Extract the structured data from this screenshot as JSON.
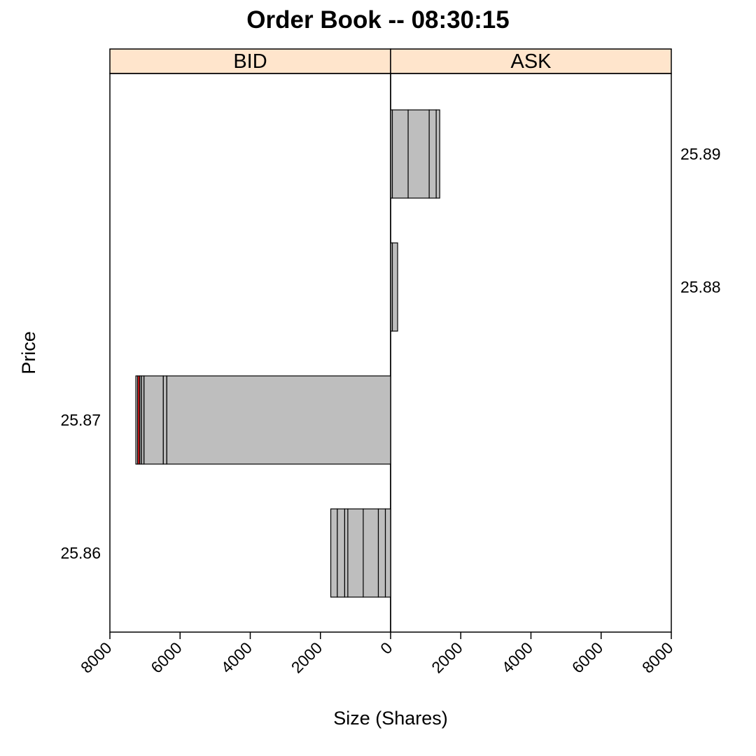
{
  "chart_data": {
    "type": "bar",
    "title": "Order Book -- 08:30:15",
    "xlabel": "Size (Shares)",
    "ylabel": "Price",
    "xlim": [
      0,
      8000
    ],
    "x_ticks": [
      8000,
      6000,
      4000,
      2000,
      0,
      2000,
      4000,
      6000,
      8000
    ],
    "grid": false,
    "legend": "none",
    "colors": {
      "bar_fill": "#bebebe",
      "bar_stroke": "#000000",
      "highlight_fill": "#e31a1c",
      "strip_fill": "#ffe5cc"
    },
    "price_levels": [
      "25.86",
      "25.87",
      "25.88",
      "25.89"
    ],
    "panels": [
      {
        "name": "BID",
        "price_labels": [
          "25.86",
          "25.87"
        ],
        "levels": [
          {
            "price": "25.86",
            "orders": [
              150,
              200,
              430,
              440,
              90,
              210,
              185
            ],
            "highlight": []
          },
          {
            "price": "25.87",
            "orders": [
              6380,
              100,
              550,
              70,
              50,
              60,
              50
            ],
            "highlight": [
              5
            ]
          }
        ]
      },
      {
        "name": "ASK",
        "price_labels": [
          "25.88",
          "25.89"
        ],
        "levels": [
          {
            "price": "25.88",
            "orders": [
              50,
              150
            ],
            "highlight": []
          },
          {
            "price": "25.89",
            "orders": [
              50,
              450,
              600,
              200,
              100
            ],
            "highlight": []
          }
        ]
      }
    ]
  }
}
